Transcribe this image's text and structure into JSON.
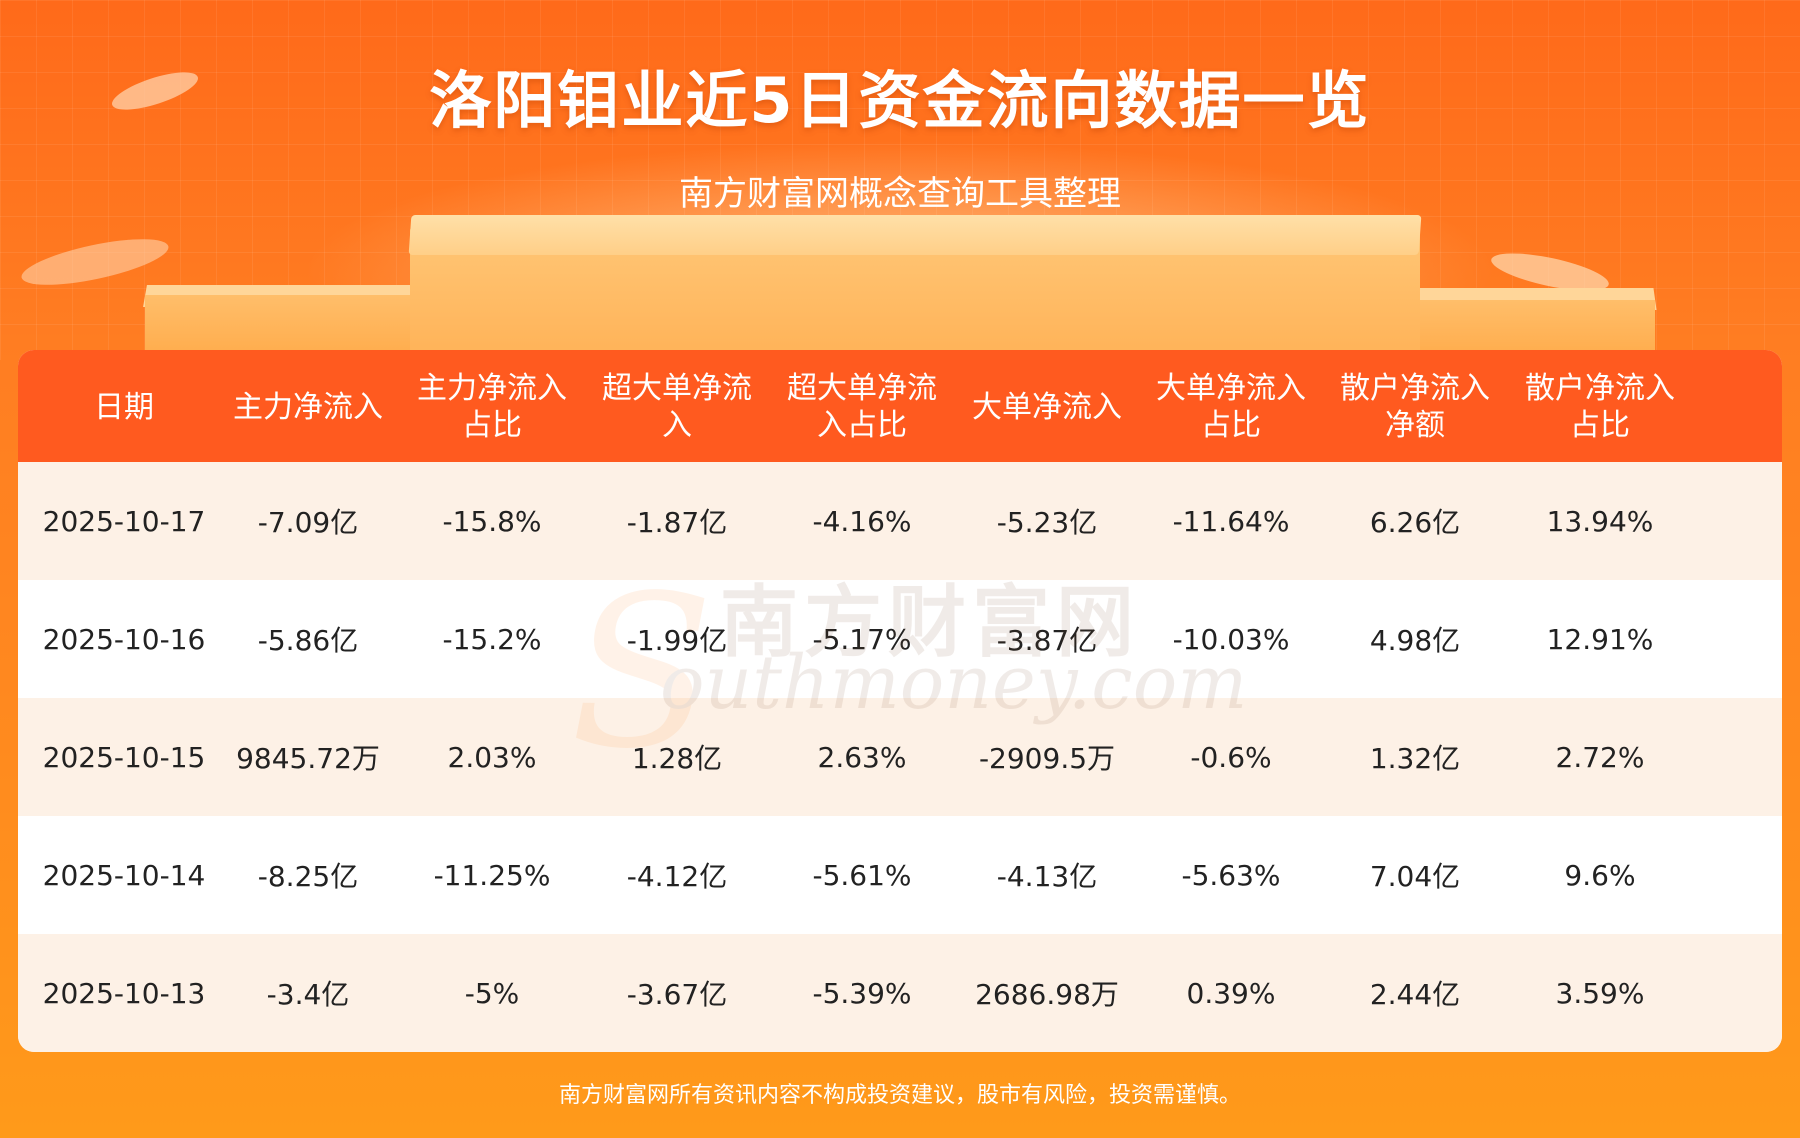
{
  "header": {
    "title": "洛阳钼业近5日资金流向数据一览",
    "subtitle": "南方财富网概念查询工具整理"
  },
  "table": {
    "columns": [
      "日期",
      "主力净流入",
      "主力净流入占比",
      "超大单净流入",
      "超大单净流入占比",
      "大单净流入",
      "大单净流入占比",
      "散户净流入净额",
      "散户净流入占比"
    ],
    "rows": [
      [
        "2025-10-17",
        "-7.09亿",
        "-15.8%",
        "-1.87亿",
        "-4.16%",
        "-5.23亿",
        "-11.64%",
        "6.26亿",
        "13.94%"
      ],
      [
        "2025-10-16",
        "-5.86亿",
        "-15.2%",
        "-1.99亿",
        "-5.17%",
        "-3.87亿",
        "-10.03%",
        "4.98亿",
        "12.91%"
      ],
      [
        "2025-10-15",
        "9845.72万",
        "2.03%",
        "1.28亿",
        "2.63%",
        "-2909.5万",
        "-0.6%",
        "1.32亿",
        "2.72%"
      ],
      [
        "2025-10-14",
        "-8.25亿",
        "-11.25%",
        "-4.12亿",
        "-5.61%",
        "-4.13亿",
        "-5.63%",
        "7.04亿",
        "9.6%"
      ],
      [
        "2025-10-13",
        "-3.4亿",
        "-5%",
        "-3.67亿",
        "-5.39%",
        "2686.98万",
        "0.39%",
        "2.44亿",
        "3.59%"
      ]
    ]
  },
  "watermark": {
    "cn": "南方财富网",
    "en": "outhmoney.com",
    "s": "S"
  },
  "footer": {
    "disclaimer": "南方财富网所有资讯内容不构成投资建议，股市有风险，投资需谨慎。"
  },
  "colors": {
    "background": "#ff7d22",
    "table_header": "#ff5a1f",
    "row_odd": "#fdf1e6",
    "row_even": "#ffffff"
  }
}
